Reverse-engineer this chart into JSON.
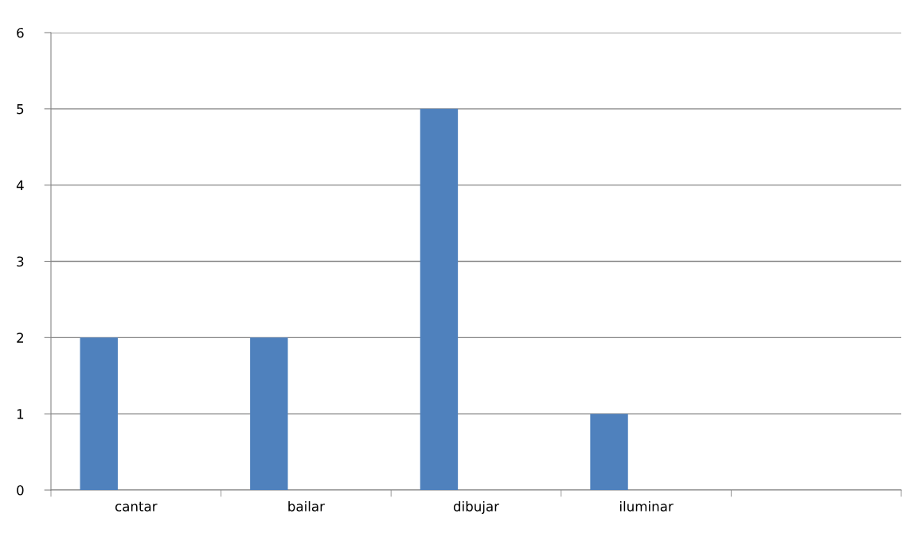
{
  "chart_data": {
    "type": "bar",
    "categories": [
      "cantar",
      "bailar",
      "dibujar",
      "iluminar",
      null
    ],
    "values": [
      2,
      2,
      5,
      1,
      null
    ],
    "color": "#4f81bd",
    "ylim": [
      0,
      6
    ],
    "yticks": [
      0,
      1,
      2,
      3,
      4,
      5,
      6
    ],
    "grid": "y",
    "legend": false
  }
}
